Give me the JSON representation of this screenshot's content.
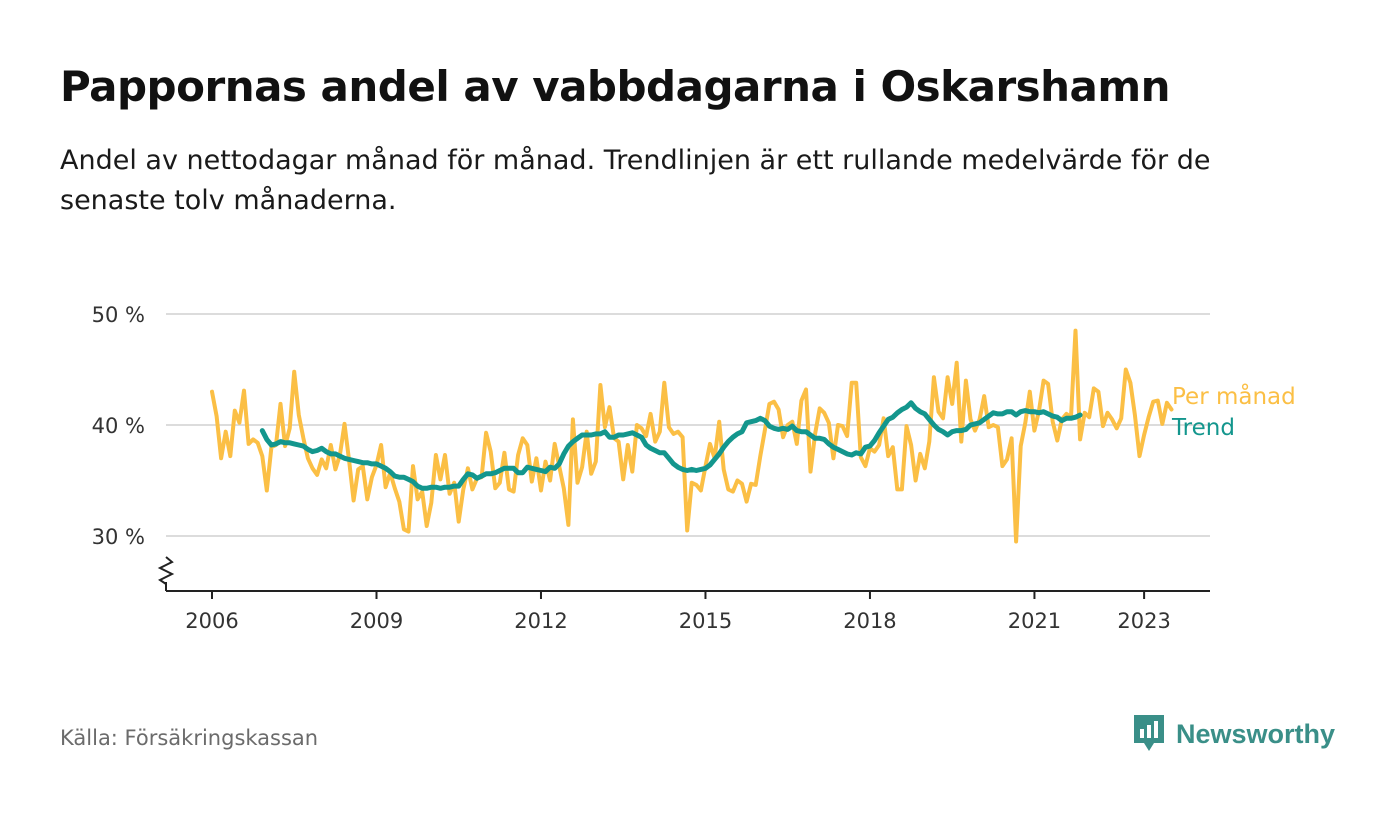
{
  "title": "Pappornas andel av vabbdagarna i Oskarshamn",
  "subtitle": "Andel av nettodagar månad för månad. Trendlinjen är ett rullande medelvärde för de senaste tolv månaderna.",
  "source": "Källa: Försäkringskassan",
  "logo": {
    "text": "Newsworthy",
    "icon": "newsworthy-logo-icon",
    "color": "#3a8f88"
  },
  "chart_data": {
    "type": "line",
    "title": "Pappornas andel av vabbdagarna i Oskarshamn",
    "xlabel": "",
    "ylabel": "",
    "xlim": [
      2005.1,
      2024.2
    ],
    "ylim": [
      25,
      50
    ],
    "y_ticks": [
      {
        "value": 30,
        "label": "30 %"
      },
      {
        "value": 40,
        "label": "40 %"
      },
      {
        "value": 50,
        "label": "50 %"
      }
    ],
    "x_ticks": [
      {
        "value": 2006,
        "label": "2006"
      },
      {
        "value": 2009,
        "label": "2009"
      },
      {
        "value": 2012,
        "label": "2012"
      },
      {
        "value": 2015,
        "label": "2015"
      },
      {
        "value": 2018,
        "label": "2018"
      },
      {
        "value": 2021,
        "label": "2021"
      },
      {
        "value": 2023,
        "label": "2023"
      }
    ],
    "grid": "horizontal",
    "y_axis_break": true,
    "legend": "inline-right",
    "series": [
      {
        "name": "Per månad",
        "color": "#fbbf45",
        "x_start": 2006.0,
        "step": 0.08333,
        "values": [
          43.0,
          40.8,
          37.0,
          39.4,
          37.2,
          41.3,
          40.2,
          43.1,
          38.3,
          38.7,
          38.4,
          37.2,
          34.1,
          38.0,
          38.2,
          41.9,
          38.1,
          39.7,
          44.8,
          40.9,
          38.8,
          37.0,
          36.1,
          35.5,
          36.9,
          36.1,
          38.2,
          36.0,
          37.3,
          40.1,
          36.8,
          33.2,
          36.0,
          36.3,
          33.3,
          35.3,
          36.4,
          38.2,
          34.4,
          35.7,
          34.3,
          33.1,
          30.6,
          30.4,
          36.3,
          33.3,
          34.0,
          30.9,
          33.0,
          37.3,
          35.1,
          37.3,
          33.8,
          34.8,
          31.3,
          34.2,
          36.1,
          34.2,
          35.2,
          35.3,
          39.3,
          37.6,
          34.3,
          34.8,
          37.5,
          34.2,
          34.0,
          37.3,
          38.8,
          38.2,
          34.9,
          37.0,
          34.1,
          36.7,
          35.0,
          38.3,
          36.3,
          34.3,
          31.0,
          40.5,
          34.8,
          36.2,
          39.4,
          35.6,
          36.7,
          43.6,
          39.8,
          41.6,
          38.8,
          38.5,
          35.1,
          38.2,
          35.8,
          40.0,
          39.7,
          39.0,
          41.0,
          38.5,
          39.4,
          43.8,
          39.8,
          39.2,
          39.4,
          38.9,
          30.5,
          34.8,
          34.6,
          34.1,
          36.3,
          38.3,
          37.0,
          40.3,
          36.0,
          34.2,
          34.0,
          35.0,
          34.7,
          33.1,
          34.7,
          34.6,
          37.2,
          39.5,
          41.9,
          42.1,
          41.4,
          38.9,
          40.0,
          40.3,
          38.3,
          42.2,
          43.2,
          35.8,
          39.2,
          41.5,
          41.1,
          40.2,
          37.0,
          40.0,
          39.9,
          39.0,
          43.8,
          43.8,
          37.1,
          36.3,
          37.9,
          37.6,
          38.2,
          40.6,
          37.2,
          38.0,
          34.2,
          34.2,
          39.9,
          38.2,
          35.0,
          37.4,
          36.1,
          38.5,
          44.3,
          41.2,
          40.6,
          44.3,
          41.9,
          45.6,
          38.5,
          44.0,
          40.5,
          39.5,
          40.5,
          42.6,
          39.8,
          40.0,
          39.8,
          36.3,
          36.9,
          38.8,
          29.5,
          38.1,
          40.2,
          43.0,
          39.5,
          41.3,
          44.0,
          43.7,
          40.3,
          38.6,
          40.5,
          41.0,
          40.7,
          48.5,
          38.7,
          41.1,
          40.7,
          43.3,
          43.0,
          39.9,
          41.1,
          40.5,
          39.7,
          40.6,
          45.0,
          43.8,
          40.9,
          37.2,
          39.1,
          40.7,
          42.1,
          42.2,
          40.1,
          42.0,
          41.4
        ]
      },
      {
        "name": "Trend",
        "color": "#13968d",
        "x_start": 2006.9167,
        "step": 0.08333,
        "values": [
          39.5,
          38.7,
          38.2,
          38.3,
          38.5,
          38.4,
          38.4,
          38.3,
          38.2,
          38.1,
          37.8,
          37.6,
          37.7,
          37.9,
          37.6,
          37.4,
          37.4,
          37.2,
          37.0,
          36.9,
          36.8,
          36.7,
          36.6,
          36.6,
          36.5,
          36.5,
          36.3,
          36.1,
          35.8,
          35.4,
          35.3,
          35.3,
          35.1,
          34.9,
          34.5,
          34.3,
          34.3,
          34.4,
          34.4,
          34.3,
          34.4,
          34.4,
          34.5,
          34.5,
          35.1,
          35.6,
          35.5,
          35.2,
          35.4,
          35.6,
          35.6,
          35.7,
          35.9,
          36.1,
          36.1,
          36.1,
          35.7,
          35.7,
          36.2,
          36.1,
          36.0,
          35.9,
          35.8,
          36.2,
          36.1,
          36.5,
          37.4,
          38.1,
          38.5,
          38.8,
          39.1,
          39.1,
          39.1,
          39.2,
          39.2,
          39.4,
          38.9,
          38.9,
          39.1,
          39.1,
          39.2,
          39.3,
          39.1,
          38.9,
          38.2,
          37.9,
          37.7,
          37.5,
          37.5,
          37.0,
          36.5,
          36.2,
          36.0,
          35.9,
          36.0,
          35.9,
          36.0,
          36.1,
          36.4,
          36.9,
          37.4,
          38.0,
          38.5,
          38.9,
          39.2,
          39.4,
          40.2,
          40.3,
          40.4,
          40.6,
          40.4,
          39.9,
          39.7,
          39.6,
          39.7,
          39.6,
          39.9,
          39.5,
          39.4,
          39.4,
          39.1,
          38.8,
          38.8,
          38.7,
          38.3,
          38.0,
          37.8,
          37.6,
          37.4,
          37.3,
          37.5,
          37.4,
          38.0,
          38.1,
          38.6,
          39.3,
          39.9,
          40.5,
          40.7,
          41.1,
          41.4,
          41.6,
          42.0,
          41.5,
          41.2,
          41.0,
          40.5,
          40.0,
          39.6,
          39.4,
          39.1,
          39.4,
          39.5,
          39.5,
          39.6,
          40.0,
          40.1,
          40.2,
          40.5,
          40.8,
          41.1,
          41.0,
          41.0,
          41.2,
          41.2,
          40.9,
          41.2,
          41.3,
          41.2,
          41.2,
          41.1,
          41.2,
          41.0,
          40.8,
          40.7,
          40.4,
          40.6,
          40.6,
          40.7,
          40.9
        ]
      }
    ]
  }
}
